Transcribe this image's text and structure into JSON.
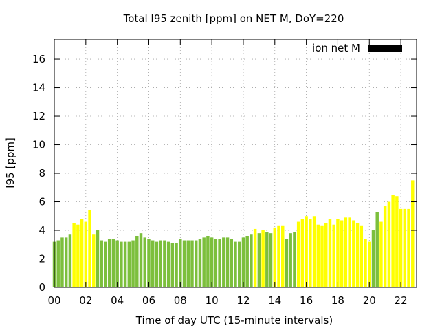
{
  "chart_data": {
    "type": "bar",
    "title": "Total I95 zenith [ppm] on NET M, DoY=220",
    "xlabel": "Time of day UTC (15-minute intervals)",
    "ylabel": "I95 [ppm]",
    "xlim": [
      0,
      23
    ],
    "ylim": [
      0,
      17.4
    ],
    "xtick_values": [
      0,
      2,
      4,
      6,
      8,
      10,
      12,
      14,
      16,
      18,
      20,
      22
    ],
    "xtick_labels": [
      "00",
      "02",
      "04",
      "06",
      "08",
      "10",
      "12",
      "14",
      "16",
      "18",
      "20",
      "22"
    ],
    "ytick_values": [
      0,
      2,
      4,
      6,
      8,
      10,
      12,
      14,
      16
    ],
    "ytick_labels": [
      "0",
      "2",
      "4",
      "6",
      "8",
      "10",
      "12",
      "14",
      "16"
    ],
    "grid": true,
    "legend": {
      "label": "ion net M",
      "color": "#000000",
      "placement": "top-right"
    },
    "colors": {
      "green": "#7cbf3c",
      "yellow": "#ffff00"
    },
    "interval_hours": 0.25,
    "bar_colors": [
      "green",
      "green",
      "green",
      "green",
      "green",
      "yellow",
      "yellow",
      "yellow",
      "yellow",
      "yellow",
      "yellow",
      "green",
      "green",
      "green",
      "green",
      "green",
      "green",
      "green",
      "green",
      "green",
      "green",
      "green",
      "green",
      "green",
      "green",
      "green",
      "green",
      "green",
      "green",
      "green",
      "green",
      "green",
      "green",
      "green",
      "green",
      "green",
      "green",
      "green",
      "green",
      "green",
      "green",
      "green",
      "green",
      "green",
      "green",
      "green",
      "green",
      "green",
      "green",
      "green",
      "green",
      "yellow",
      "green",
      "yellow",
      "green",
      "green",
      "yellow",
      "yellow",
      "yellow",
      "green",
      "green",
      "green",
      "yellow",
      "yellow",
      "yellow",
      "yellow",
      "yellow",
      "yellow",
      "yellow",
      "yellow",
      "yellow",
      "yellow",
      "yellow",
      "yellow",
      "yellow",
      "yellow",
      "yellow",
      "yellow",
      "yellow",
      "yellow",
      "yellow",
      "green",
      "green",
      "yellow",
      "yellow",
      "yellow",
      "yellow",
      "yellow",
      "yellow",
      "yellow",
      "yellow",
      "yellow",
      "yellow",
      "yellow"
    ],
    "values": [
      3.2,
      3.3,
      3.5,
      3.5,
      3.7,
      4.5,
      4.4,
      4.8,
      4.6,
      5.4,
      3.7,
      4.0,
      3.3,
      3.2,
      3.4,
      3.4,
      3.3,
      3.2,
      3.2,
      3.2,
      3.3,
      3.6,
      3.8,
      3.5,
      3.4,
      3.3,
      3.2,
      3.3,
      3.3,
      3.2,
      3.1,
      3.1,
      3.4,
      3.3,
      3.3,
      3.3,
      3.3,
      3.4,
      3.5,
      3.6,
      3.5,
      3.4,
      3.4,
      3.5,
      3.5,
      3.4,
      3.2,
      3.2,
      3.5,
      3.6,
      3.7,
      4.1,
      3.8,
      4.0,
      3.9,
      3.8,
      4.2,
      4.3,
      4.3,
      3.4,
      3.8,
      3.9,
      4.6,
      4.8,
      5.0,
      4.8,
      5.0,
      4.4,
      4.3,
      4.5,
      4.8,
      4.4,
      4.8,
      4.7,
      4.9,
      4.9,
      4.7,
      4.5,
      4.3,
      3.4,
      3.2,
      4.0,
      5.3,
      4.6,
      5.7,
      6.0,
      6.5,
      6.4,
      5.5,
      5.5,
      5.5,
      7.5
    ]
  }
}
